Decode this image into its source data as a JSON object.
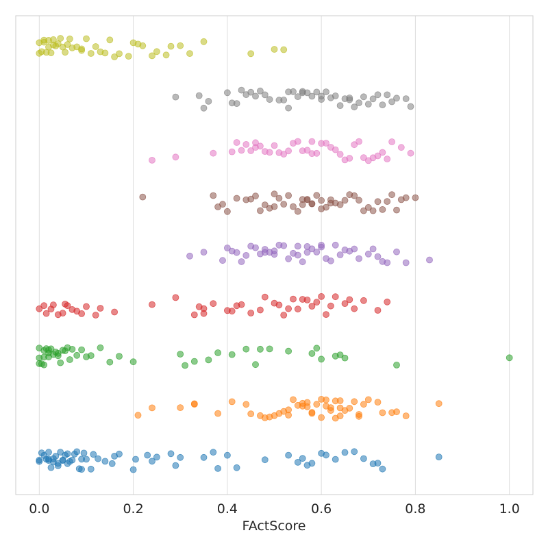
{
  "chart_data": {
    "type": "scatter",
    "title": "",
    "xlabel": "FActScore",
    "ylabel": "",
    "xlim": [
      -0.05,
      1.05
    ],
    "xticks": [
      "0.0",
      "0.2",
      "0.4",
      "0.6",
      "0.8",
      "1.0"
    ],
    "xtick_values": [
      0.0,
      0.2,
      0.4,
      0.6,
      0.8,
      1.0
    ],
    "grid": "vertical",
    "legend": "none",
    "series": [
      {
        "color": "#1f77b4",
        "values": [
          0.0,
          0.0,
          0.005,
          0.01,
          0.015,
          0.02,
          0.02,
          0.025,
          0.03,
          0.03,
          0.035,
          0.04,
          0.04,
          0.045,
          0.05,
          0.055,
          0.06,
          0.06,
          0.065,
          0.07,
          0.075,
          0.08,
          0.085,
          0.09,
          0.095,
          0.1,
          0.11,
          0.115,
          0.125,
          0.14,
          0.155,
          0.16,
          0.17,
          0.2,
          0.205,
          0.23,
          0.24,
          0.25,
          0.28,
          0.29,
          0.3,
          0.35,
          0.37,
          0.38,
          0.4,
          0.42,
          0.48,
          0.53,
          0.55,
          0.56,
          0.57,
          0.58,
          0.6,
          0.61,
          0.63,
          0.65,
          0.67,
          0.69,
          0.71,
          0.72,
          0.73,
          0.85,
          0.09,
          0.05,
          0.02
        ]
      },
      {
        "color": "#ff7f0e",
        "values": [
          0.21,
          0.24,
          0.3,
          0.33,
          0.33,
          0.38,
          0.41,
          0.44,
          0.45,
          0.47,
          0.48,
          0.49,
          0.5,
          0.51,
          0.52,
          0.53,
          0.54,
          0.55,
          0.56,
          0.56,
          0.57,
          0.58,
          0.58,
          0.59,
          0.6,
          0.6,
          0.61,
          0.62,
          0.62,
          0.63,
          0.63,
          0.64,
          0.64,
          0.65,
          0.66,
          0.67,
          0.68,
          0.68,
          0.69,
          0.7,
          0.72,
          0.73,
          0.75,
          0.76,
          0.78,
          0.85,
          0.53,
          0.57,
          0.61,
          0.64
        ]
      },
      {
        "color": "#2ca02c",
        "values": [
          0.0,
          0.0,
          0.0,
          0.005,
          0.01,
          0.01,
          0.015,
          0.02,
          0.02,
          0.025,
          0.03,
          0.035,
          0.04,
          0.045,
          0.05,
          0.055,
          0.06,
          0.065,
          0.07,
          0.08,
          0.09,
          0.1,
          0.11,
          0.13,
          0.15,
          0.17,
          0.2,
          0.3,
          0.31,
          0.33,
          0.36,
          0.38,
          0.41,
          0.44,
          0.46,
          0.47,
          0.49,
          0.53,
          0.58,
          0.59,
          0.6,
          0.63,
          0.64,
          0.65,
          0.76,
          1.0,
          0.04,
          0.02,
          0.01
        ]
      },
      {
        "color": "#d62728",
        "values": [
          0.0,
          0.01,
          0.015,
          0.025,
          0.03,
          0.04,
          0.05,
          0.055,
          0.06,
          0.07,
          0.08,
          0.09,
          0.1,
          0.12,
          0.13,
          0.16,
          0.24,
          0.29,
          0.33,
          0.34,
          0.35,
          0.37,
          0.4,
          0.41,
          0.42,
          0.43,
          0.45,
          0.47,
          0.48,
          0.5,
          0.51,
          0.52,
          0.53,
          0.54,
          0.55,
          0.56,
          0.57,
          0.58,
          0.59,
          0.6,
          0.61,
          0.62,
          0.63,
          0.65,
          0.66,
          0.67,
          0.69,
          0.72,
          0.74,
          0.35
        ]
      },
      {
        "color": "#9467bd",
        "values": [
          0.32,
          0.35,
          0.39,
          0.4,
          0.41,
          0.42,
          0.43,
          0.44,
          0.45,
          0.46,
          0.47,
          0.48,
          0.49,
          0.5,
          0.5,
          0.51,
          0.52,
          0.53,
          0.54,
          0.55,
          0.56,
          0.57,
          0.57,
          0.58,
          0.59,
          0.6,
          0.6,
          0.61,
          0.62,
          0.63,
          0.64,
          0.65,
          0.66,
          0.67,
          0.68,
          0.7,
          0.71,
          0.72,
          0.73,
          0.74,
          0.76,
          0.78,
          0.83,
          0.48,
          0.55
        ]
      },
      {
        "color": "#8c564b",
        "values": [
          0.22,
          0.37,
          0.38,
          0.39,
          0.4,
          0.42,
          0.44,
          0.45,
          0.46,
          0.47,
          0.48,
          0.49,
          0.5,
          0.51,
          0.52,
          0.53,
          0.54,
          0.55,
          0.56,
          0.56,
          0.57,
          0.58,
          0.58,
          0.59,
          0.6,
          0.6,
          0.61,
          0.62,
          0.63,
          0.64,
          0.65,
          0.66,
          0.67,
          0.68,
          0.69,
          0.7,
          0.71,
          0.72,
          0.73,
          0.74,
          0.75,
          0.76,
          0.77,
          0.78,
          0.8,
          0.5,
          0.62,
          0.57
        ]
      },
      {
        "color": "#e377c2",
        "values": [
          0.24,
          0.29,
          0.37,
          0.41,
          0.42,
          0.43,
          0.44,
          0.45,
          0.46,
          0.47,
          0.48,
          0.49,
          0.5,
          0.51,
          0.52,
          0.53,
          0.54,
          0.55,
          0.56,
          0.57,
          0.58,
          0.59,
          0.6,
          0.61,
          0.62,
          0.63,
          0.64,
          0.65,
          0.66,
          0.67,
          0.68,
          0.69,
          0.7,
          0.71,
          0.72,
          0.73,
          0.74,
          0.75,
          0.77,
          0.79,
          0.46,
          0.58
        ]
      },
      {
        "color": "#7f7f7f",
        "values": [
          0.29,
          0.34,
          0.35,
          0.36,
          0.4,
          0.41,
          0.42,
          0.43,
          0.44,
          0.45,
          0.46,
          0.47,
          0.48,
          0.49,
          0.51,
          0.52,
          0.53,
          0.54,
          0.55,
          0.56,
          0.56,
          0.57,
          0.58,
          0.59,
          0.6,
          0.61,
          0.62,
          0.63,
          0.64,
          0.65,
          0.66,
          0.67,
          0.68,
          0.69,
          0.7,
          0.71,
          0.72,
          0.73,
          0.74,
          0.75,
          0.76,
          0.78,
          0.79,
          0.53,
          0.6,
          0.66
        ]
      },
      {
        "color": "#bcbd22",
        "values": [
          0.0,
          0.0,
          0.005,
          0.01,
          0.015,
          0.02,
          0.02,
          0.025,
          0.03,
          0.035,
          0.04,
          0.045,
          0.05,
          0.055,
          0.06,
          0.065,
          0.07,
          0.08,
          0.09,
          0.1,
          0.11,
          0.12,
          0.13,
          0.14,
          0.15,
          0.16,
          0.17,
          0.19,
          0.2,
          0.21,
          0.22,
          0.24,
          0.25,
          0.27,
          0.28,
          0.3,
          0.32,
          0.35,
          0.45,
          0.5,
          0.52,
          0.03,
          0.09,
          0.01
        ]
      }
    ]
  }
}
